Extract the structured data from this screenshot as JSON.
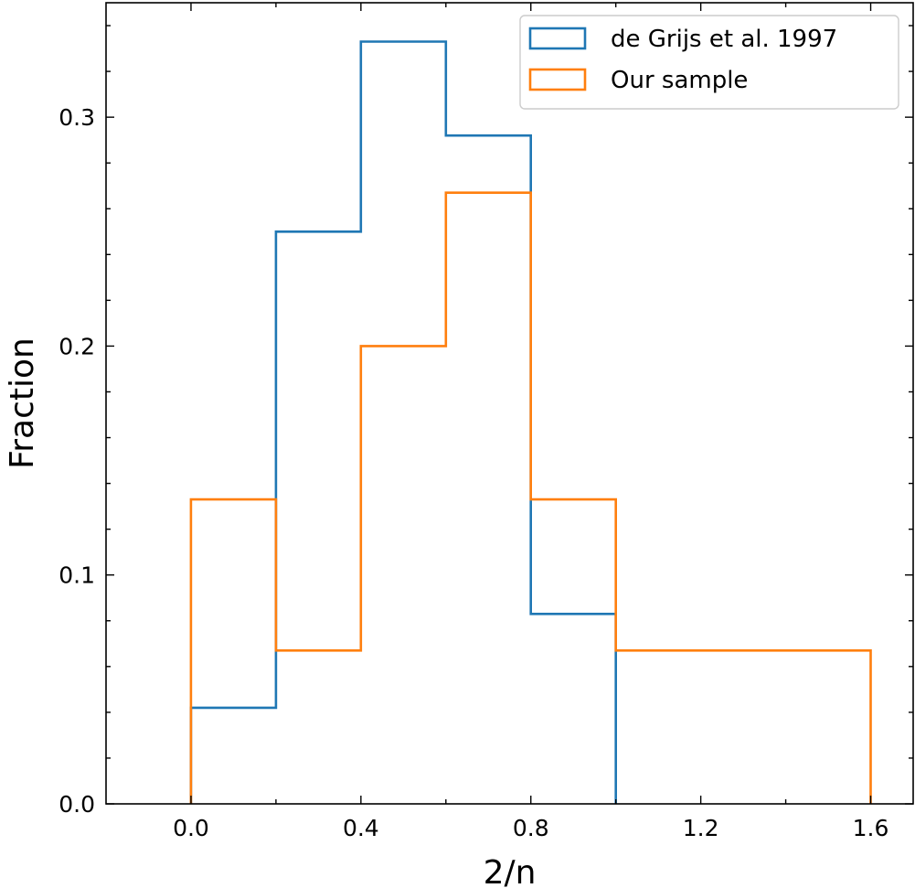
{
  "chart_data": {
    "type": "histogram",
    "xlabel": "2/n",
    "ylabel": "Fraction",
    "xlim": [
      -0.2,
      1.7
    ],
    "ylim": [
      0,
      0.35
    ],
    "x_ticks": [
      "0.0",
      "0.4",
      "0.8",
      "1.2",
      "1.6"
    ],
    "y_ticks": [
      "0.0",
      "0.1",
      "0.2",
      "0.3"
    ],
    "x_tick_values": [
      0,
      0.4,
      0.8,
      1.2,
      1.6
    ],
    "y_tick_values": [
      0,
      0.1,
      0.2,
      0.3
    ],
    "x_minor_tick_values": [
      0.2,
      0.6,
      1.0,
      1.4
    ],
    "y_minor_tick_values": [
      0.02,
      0.04,
      0.06,
      0.08,
      0.12,
      0.14,
      0.16,
      0.18,
      0.22,
      0.24,
      0.26,
      0.28,
      0.32,
      0.34
    ],
    "grid": false,
    "legend_position": "top-right",
    "series": [
      {
        "name": "de Grijs et al. 1997",
        "color": "#1f77b4",
        "bin_edges": [
          0.0,
          0.2,
          0.4,
          0.6,
          0.8,
          1.0
        ],
        "values": [
          0.042,
          0.25,
          0.333,
          0.292,
          0.083
        ]
      },
      {
        "name": "Our sample",
        "color": "#ff7f0e",
        "bin_edges": [
          0.0,
          0.2,
          0.4,
          0.6,
          0.8,
          1.0,
          1.6
        ],
        "values": [
          0.133,
          0.067,
          0.2,
          0.267,
          0.133,
          0.067
        ]
      }
    ]
  }
}
